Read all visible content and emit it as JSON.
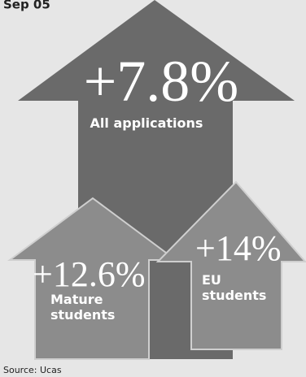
{
  "header": {
    "title": "Sep 05"
  },
  "main": {
    "figure": "+7.8%",
    "label": "All applications"
  },
  "items": [
    {
      "figure": "+12.6%",
      "label_lines": [
        "Mature",
        "students"
      ]
    },
    {
      "figure": "+14%",
      "label_lines": [
        "EU",
        "students"
      ]
    }
  ],
  "footer": {
    "source": "Source: Ucas"
  }
}
